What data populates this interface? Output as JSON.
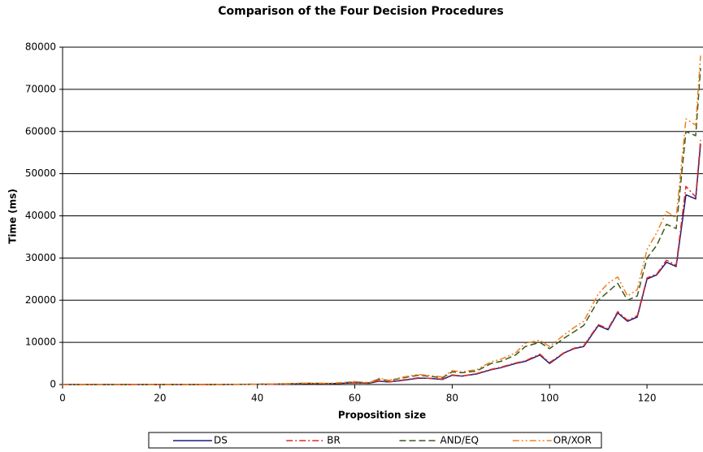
{
  "chart_data": {
    "type": "line",
    "title": "Comparison of the Four Decision Procedures",
    "x_label": "Proposition size",
    "y_label": "Time (ms)",
    "x": [
      0,
      10,
      20,
      30,
      40,
      45,
      50,
      55,
      60,
      63,
      65,
      67,
      70,
      73,
      75,
      78,
      80,
      82,
      85,
      88,
      90,
      93,
      95,
      98,
      100,
      103,
      105,
      107,
      110,
      112,
      114,
      116,
      118,
      120,
      122,
      124,
      126,
      128,
      130,
      131
    ],
    "series": [
      {
        "name": "DS",
        "color": "#1a1a80",
        "dash": "none",
        "values": [
          0,
          0,
          0,
          0,
          50,
          100,
          200,
          200,
          400,
          300,
          800,
          600,
          1000,
          1500,
          1500,
          1200,
          2200,
          2000,
          2500,
          3500,
          4000,
          5000,
          5500,
          7000,
          5000,
          7500,
          8500,
          9000,
          14000,
          13000,
          17000,
          15000,
          16000,
          25000,
          26000,
          29000,
          28000,
          45000,
          44000,
          57000
        ]
      },
      {
        "name": "BR",
        "color": "#e02a20",
        "dash": "8 3 2 3",
        "values": [
          0,
          0,
          0,
          0,
          50,
          100,
          250,
          200,
          450,
          300,
          900,
          600,
          1100,
          1600,
          1500,
          1300,
          2300,
          2000,
          2600,
          3600,
          4100,
          5100,
          5600,
          7200,
          5200,
          7600,
          8600,
          9200,
          14200,
          13200,
          17300,
          15200,
          16300,
          25300,
          26200,
          29500,
          28300,
          47000,
          44500,
          58000
        ]
      },
      {
        "name": "AND/EQ",
        "color": "#3d5a1a",
        "dash": "8 4",
        "values": [
          0,
          0,
          0,
          0,
          80,
          150,
          300,
          250,
          600,
          400,
          1300,
          900,
          1600,
          2200,
          2000,
          1600,
          3000,
          2800,
          3200,
          5000,
          5500,
          7000,
          9000,
          10000,
          8500,
          11000,
          12500,
          14000,
          20000,
          22000,
          24000,
          20000,
          21000,
          30000,
          33000,
          38000,
          37000,
          60000,
          59000,
          75000
        ]
      },
      {
        "name": "OR/XOR",
        "color": "#f08020",
        "dash": "8 3 2 3 2 3",
        "values": [
          0,
          0,
          0,
          0,
          90,
          170,
          350,
          280,
          700,
          450,
          1500,
          1000,
          1800,
          2400,
          2200,
          1800,
          3300,
          3000,
          3500,
          5400,
          6000,
          7500,
          9800,
          10500,
          9000,
          11800,
          13500,
          15000,
          21500,
          24000,
          25500,
          21000,
          22500,
          32000,
          36000,
          41000,
          39500,
          63000,
          61500,
          78000
        ]
      }
    ],
    "xlim": [
      0,
      131.5
    ],
    "xticks": [
      0,
      20,
      40,
      60,
      80,
      100,
      120
    ],
    "ylim": [
      0,
      80000
    ],
    "yticks": [
      0,
      10000,
      20000,
      30000,
      40000,
      50000,
      60000,
      70000,
      80000
    ],
    "grid": true,
    "legend": "bottom"
  }
}
